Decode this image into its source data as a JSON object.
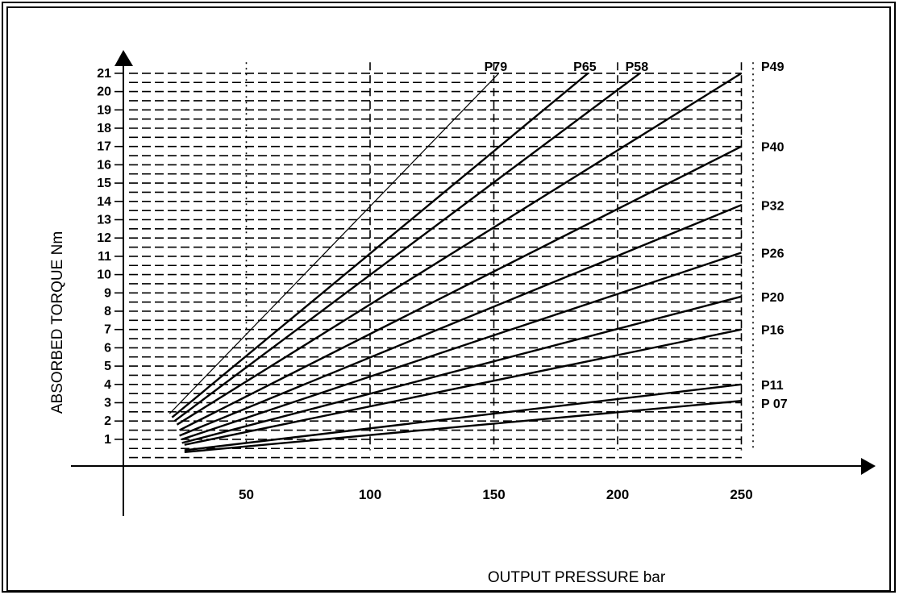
{
  "chart_data": {
    "type": "line",
    "xlabel": "OUTPUT PRESSURE bar",
    "ylabel": "ABSORBED TORQUE  Nm",
    "x_ticks": [
      "50",
      "100",
      "150",
      "200",
      "250"
    ],
    "y_ticks": [
      "1",
      "2",
      "3",
      "4",
      "5",
      "6",
      "7",
      "8",
      "9",
      "10",
      "11",
      "12",
      "13",
      "14",
      "15",
      "16",
      "17",
      "18",
      "19",
      "20",
      "21"
    ],
    "xlim": [
      0,
      300
    ],
    "ylim": [
      0,
      22.5
    ],
    "grid": true,
    "series": [
      {
        "name": "P79",
        "points": [
          [
            19,
            2.4
          ],
          [
            152,
            21
          ]
        ]
      },
      {
        "name": "P65",
        "points": [
          [
            20,
            2.2
          ],
          [
            188,
            21
          ]
        ]
      },
      {
        "name": "P58",
        "points": [
          [
            21,
            2.0
          ],
          [
            209,
            21
          ]
        ]
      },
      {
        "name": "P49",
        "points": [
          [
            22,
            1.8
          ],
          [
            250,
            21
          ]
        ]
      },
      {
        "name": "P40",
        "points": [
          [
            23,
            1.5
          ],
          [
            250,
            17
          ]
        ]
      },
      {
        "name": "P32",
        "points": [
          [
            23,
            1.2
          ],
          [
            250,
            13.8
          ]
        ]
      },
      {
        "name": "P26",
        "points": [
          [
            24,
            1.0
          ],
          [
            250,
            11.2
          ]
        ]
      },
      {
        "name": "P20",
        "points": [
          [
            24,
            0.8
          ],
          [
            250,
            8.8
          ]
        ]
      },
      {
        "name": "P16",
        "points": [
          [
            25,
            0.7
          ],
          [
            250,
            7.0
          ]
        ]
      },
      {
        "name": "P11",
        "points": [
          [
            25,
            0.4
          ],
          [
            250,
            4.0
          ]
        ]
      },
      {
        "name": "P 07",
        "points": [
          [
            25,
            0.3
          ],
          [
            250,
            3.1
          ]
        ]
      }
    ]
  }
}
